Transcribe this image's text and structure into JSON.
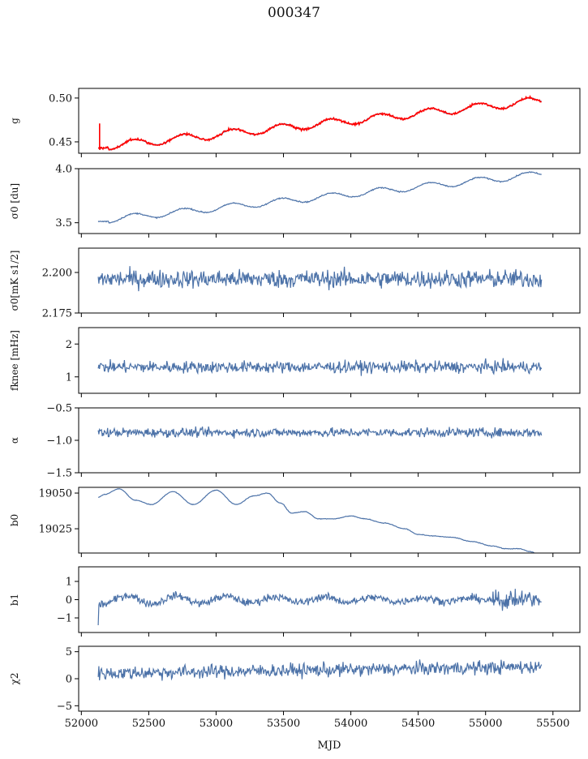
{
  "figure": {
    "title": "000347"
  },
  "colors": {
    "series": "#4c72a8",
    "overlay": "#ff0000",
    "axis": "#000000"
  },
  "chart_data": [
    {
      "type": "line",
      "id": "g",
      "ylabel": "g",
      "xlim": [
        51980,
        55700
      ],
      "ylim": [
        0.437,
        0.511
      ],
      "yticks": [
        0.45,
        0.5
      ],
      "ytick_labels": [
        "0.45",
        "0.50"
      ],
      "xrange": [
        52125,
        55415
      ],
      "model": {
        "kind": "trend_osc",
        "start": 0.444,
        "end": 0.497,
        "amp": 0.0045,
        "period": 365,
        "noise": 0.0004
      },
      "overlay": {
        "color": "red",
        "note": "fit"
      }
    },
    {
      "type": "line",
      "id": "sigma0_du",
      "ylabel": "σ0 [du]",
      "xlim": [
        51980,
        55700
      ],
      "ylim": [
        3.4,
        4.0
      ],
      "yticks": [
        3.5,
        4.0
      ],
      "ytick_labels": [
        "3.5",
        "4.0"
      ],
      "xrange": [
        52125,
        55415
      ],
      "model": {
        "kind": "trend_osc",
        "start": 3.52,
        "end": 3.95,
        "amp": 0.03,
        "period": 365,
        "noise": 0.004
      }
    },
    {
      "type": "line",
      "id": "sigma0_mks",
      "ylabel": "σ0[mK s1/2]",
      "xlim": [
        51980,
        55700
      ],
      "ylim": [
        2.175,
        2.215
      ],
      "yticks": [
        2.175,
        2.2
      ],
      "ytick_labels": [
        "2.175",
        "2.200"
      ],
      "xrange": [
        52125,
        55415
      ],
      "model": {
        "kind": "noise",
        "center": 2.196,
        "noise": 0.004
      }
    },
    {
      "type": "line",
      "id": "fknee",
      "ylabel": "fknee [mHz]",
      "xlim": [
        51980,
        55700
      ],
      "ylim": [
        0.5,
        2.5
      ],
      "yticks": [
        1,
        2
      ],
      "ytick_labels": [
        "1",
        "2"
      ],
      "xrange": [
        52125,
        55415
      ],
      "model": {
        "kind": "noise",
        "center": 1.3,
        "noise": 0.13
      }
    },
    {
      "type": "line",
      "id": "alpha",
      "ylabel": "α",
      "xlim": [
        51980,
        55700
      ],
      "ylim": [
        -1.5,
        -0.5
      ],
      "yticks": [
        -1.5,
        -1.0,
        -0.5
      ],
      "ytick_labels": [
        "−1.5",
        "−1.0",
        "−0.5"
      ],
      "xrange": [
        52125,
        55415
      ],
      "model": {
        "kind": "noise",
        "center": -0.88,
        "noise": 0.05
      }
    },
    {
      "type": "line",
      "id": "b0",
      "ylabel": "b0",
      "xlim": [
        51980,
        55700
      ],
      "ylim": [
        19008,
        19054
      ],
      "yticks": [
        19025,
        19050
      ],
      "ytick_labels": [
        "19025",
        "19050"
      ],
      "xrange": [
        52125,
        55415
      ],
      "model": {
        "kind": "keypoints",
        "x": [
          52125,
          52170,
          52280,
          52400,
          52520,
          52680,
          52830,
          53000,
          53150,
          53280,
          53380,
          53480,
          53560,
          53660,
          53760,
          53880,
          54000,
          54100,
          54250,
          54400,
          54500,
          54600,
          54750,
          54900,
          55050,
          55150,
          55250,
          55330,
          55400
        ],
        "y": [
          19047,
          19049,
          19053,
          19045,
          19042,
          19051,
          19042,
          19052,
          19042,
          19048,
          19050,
          19043,
          19036,
          19037,
          19032,
          19032,
          19034,
          19032,
          19029,
          19025,
          19021,
          19020,
          19019,
          19016,
          19013,
          19011,
          19011,
          19009,
          19007
        ]
      }
    },
    {
      "type": "line",
      "id": "b1",
      "ylabel": "b1",
      "xlim": [
        51980,
        55700
      ],
      "ylim": [
        -1.8,
        1.8
      ],
      "yticks": [
        -1,
        0,
        1
      ],
      "ytick_labels": [
        "−1",
        "0",
        "1"
      ],
      "xrange": [
        52125,
        55415
      ],
      "model": {
        "kind": "b1",
        "amp": 0.25,
        "period": 365,
        "noise": 0.15
      }
    },
    {
      "type": "line",
      "id": "chi2",
      "ylabel": "χ2",
      "xlim": [
        51980,
        55700
      ],
      "ylim": [
        -6,
        6
      ],
      "yticks": [
        -5,
        0,
        5
      ],
      "ytick_labels": [
        "−5",
        "0",
        "5"
      ],
      "xrange": [
        52125,
        55415
      ],
      "model": {
        "kind": "noise_trend",
        "start": 1.0,
        "end": 2.2,
        "noise": 0.9
      }
    }
  ],
  "xaxis": {
    "label": "MJD",
    "ticks": [
      52000,
      52500,
      53000,
      53500,
      54000,
      54500,
      55000,
      55500
    ],
    "tick_labels": [
      "52000",
      "52500",
      "53000",
      "53500",
      "54000",
      "54500",
      "55000",
      "55500"
    ]
  }
}
